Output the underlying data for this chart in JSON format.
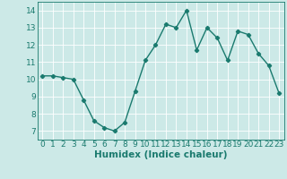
{
  "x": [
    0,
    1,
    2,
    3,
    4,
    5,
    6,
    7,
    8,
    9,
    10,
    11,
    12,
    13,
    14,
    15,
    16,
    17,
    18,
    19,
    20,
    21,
    22,
    23
  ],
  "y": [
    10.2,
    10.2,
    10.1,
    10.0,
    8.8,
    7.6,
    7.2,
    7.0,
    7.5,
    9.3,
    11.1,
    12.0,
    13.2,
    13.0,
    14.0,
    11.7,
    13.0,
    12.4,
    11.1,
    12.8,
    12.6,
    11.5,
    10.8,
    9.2
  ],
  "line_color": "#1a7a6e",
  "marker": "D",
  "marker_size": 2.2,
  "bg_color": "#cce9e7",
  "grid_color": "#ffffff",
  "xlabel": "Humidex (Indice chaleur)",
  "xlim": [
    -0.5,
    23.5
  ],
  "ylim": [
    6.5,
    14.5
  ],
  "yticks": [
    7,
    8,
    9,
    10,
    11,
    12,
    13,
    14
  ],
  "xticks": [
    0,
    1,
    2,
    3,
    4,
    5,
    6,
    7,
    8,
    9,
    10,
    11,
    12,
    13,
    14,
    15,
    16,
    17,
    18,
    19,
    20,
    21,
    22,
    23
  ],
  "label_fontsize": 7.5,
  "tick_fontsize": 6.5,
  "line_width": 1.0,
  "outer_bg": "#cce9e7"
}
